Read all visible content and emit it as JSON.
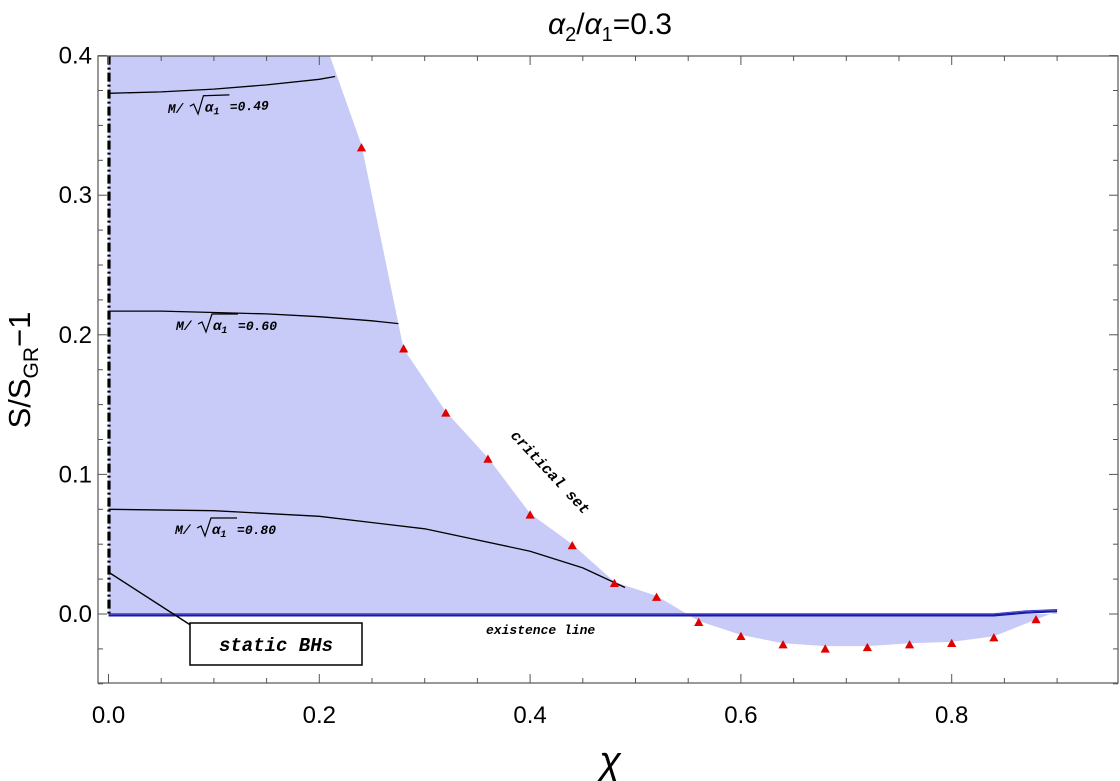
{
  "chart_data": {
    "type": "scatter",
    "title": "α₂/α₁=0.3",
    "title_parts": {
      "a": "α",
      "sub2": "2",
      "slash": "/",
      "sub1": "1",
      "eq": "=0.3"
    },
    "xlabel": "χ",
    "ylabel_parts": {
      "main": "S/S",
      "sub": "GR",
      "rest": "−1"
    },
    "xlim": [
      0,
      0.9
    ],
    "ylim": [
      -0.05,
      0.4
    ],
    "xticks": [
      "0.0",
      "0.2",
      "0.4",
      "0.6",
      "0.8"
    ],
    "yticks": [
      "0.0",
      "0.1",
      "0.2",
      "0.3",
      "0.4"
    ],
    "grid": false,
    "colors": {
      "region": "#c8cbf7",
      "markers": "#e00000",
      "existence": "#1a1aa8",
      "curves": "#000000"
    },
    "domain_of_existence": [
      [
        0.0,
        0.4
      ],
      [
        0.21,
        0.4
      ],
      [
        0.24,
        0.336
      ],
      [
        0.28,
        0.19
      ],
      [
        0.32,
        0.145
      ],
      [
        0.36,
        0.112
      ],
      [
        0.4,
        0.072
      ],
      [
        0.44,
        0.05
      ],
      [
        0.48,
        0.023
      ],
      [
        0.52,
        0.013
      ],
      [
        0.56,
        -0.005
      ],
      [
        0.6,
        -0.015
      ],
      [
        0.64,
        -0.021
      ],
      [
        0.68,
        -0.023
      ],
      [
        0.72,
        -0.023
      ],
      [
        0.76,
        -0.021
      ],
      [
        0.8,
        -0.02
      ],
      [
        0.84,
        -0.016
      ],
      [
        0.88,
        -0.004
      ],
      [
        0.9,
        0.002
      ],
      [
        0.9,
        0.0
      ],
      [
        0.0,
        0.0
      ]
    ],
    "critical_set": [
      {
        "x": 0.24,
        "y": 0.334
      },
      {
        "x": 0.28,
        "y": 0.19
      },
      {
        "x": 0.32,
        "y": 0.144
      },
      {
        "x": 0.36,
        "y": 0.111
      },
      {
        "x": 0.4,
        "y": 0.071
      },
      {
        "x": 0.44,
        "y": 0.049
      },
      {
        "x": 0.48,
        "y": 0.022
      },
      {
        "x": 0.52,
        "y": 0.012
      },
      {
        "x": 0.56,
        "y": -0.006
      },
      {
        "x": 0.6,
        "y": -0.016
      },
      {
        "x": 0.64,
        "y": -0.022
      },
      {
        "x": 0.68,
        "y": -0.025
      },
      {
        "x": 0.72,
        "y": -0.024
      },
      {
        "x": 0.76,
        "y": -0.022
      },
      {
        "x": 0.8,
        "y": -0.021
      },
      {
        "x": 0.84,
        "y": -0.017
      },
      {
        "x": 0.88,
        "y": -0.004
      }
    ],
    "mass_curves": [
      {
        "label": "M/√α₁=0.49",
        "value": "0.49",
        "points": [
          [
            0.0,
            0.373
          ],
          [
            0.05,
            0.374
          ],
          [
            0.1,
            0.376
          ],
          [
            0.15,
            0.379
          ],
          [
            0.2,
            0.383
          ],
          [
            0.215,
            0.385
          ]
        ]
      },
      {
        "label": "M/√α₁=0.60",
        "value": "0.60",
        "points": [
          [
            0.0,
            0.217
          ],
          [
            0.05,
            0.217
          ],
          [
            0.1,
            0.216
          ],
          [
            0.15,
            0.215
          ],
          [
            0.2,
            0.213
          ],
          [
            0.25,
            0.21
          ],
          [
            0.275,
            0.208
          ]
        ]
      },
      {
        "label": "M/√α₁=0.80",
        "value": "0.80",
        "points": [
          [
            0.0,
            0.075
          ],
          [
            0.1,
            0.074
          ],
          [
            0.2,
            0.07
          ],
          [
            0.3,
            0.061
          ],
          [
            0.4,
            0.045
          ],
          [
            0.45,
            0.033
          ],
          [
            0.49,
            0.019
          ]
        ]
      }
    ],
    "existence_line": [
      [
        0.0,
        -0.001
      ],
      [
        0.84,
        -0.001
      ],
      [
        0.87,
        0.001
      ],
      [
        0.9,
        0.002
      ]
    ],
    "annotations": {
      "critical": "critical set",
      "existence": "existence line",
      "static": "static BHs",
      "mass_prefix": "M/",
      "sqrt_var": "α",
      "sqrt_sub": "1",
      "mass_eq": "="
    }
  }
}
